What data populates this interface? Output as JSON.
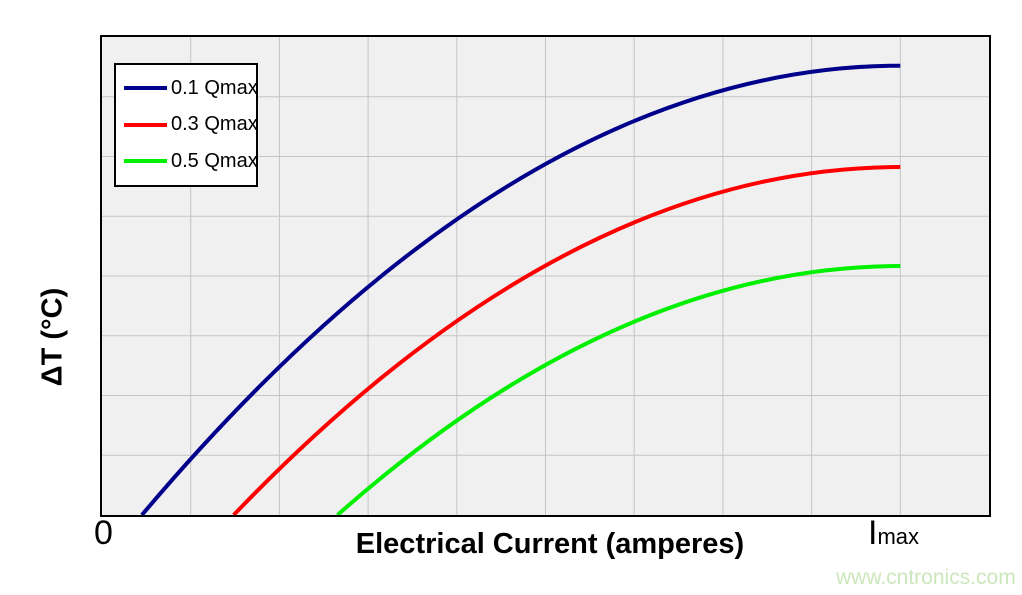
{
  "watermark": {
    "text": "www.cntronics.com",
    "color": "#cbe7bb"
  },
  "chart_data": {
    "type": "line",
    "title": "",
    "xlabel": "Electrical Current (amperes)",
    "ylabel": "ΔT (°C)",
    "x_tick_labels": [
      "0",
      "Imax"
    ],
    "y_tick_labels": [],
    "x_ticks": {
      "zero": "0",
      "imax_base": "I",
      "imax_sub": "max"
    },
    "x_axis_note": "x expressed as fraction of Imax; axis extends to about 1.11 x Imax",
    "y_axis_note": "Delta-T axis has no numeric labels; y expressed as fraction of plot full scale",
    "xlim": [
      0,
      1.111
    ],
    "ylim": [
      0,
      1
    ],
    "imax_position_fraction_of_axis": 0.9,
    "grid": {
      "on": true,
      "x_divisions": 10,
      "y_divisions": 8,
      "color": "#c4c4c4"
    },
    "plot_bg": "#f0f0f0",
    "border_color": "#000000",
    "legend": {
      "position": "top-left",
      "entries": [
        "0.1 Qmax",
        "0.3 Qmax",
        "0.5 Qmax"
      ]
    },
    "series": [
      {
        "name": "0.1 Qmax",
        "color": "#00008b",
        "shape": "parabola with vertex (zero slope) at x=1 (Imax)",
        "x_intercept": 0.05,
        "peak": 0.94,
        "points": [
          [
            0.05,
            0
          ],
          [
            0.1,
            0.096
          ],
          [
            0.2,
            0.273
          ],
          [
            0.3,
            0.429
          ],
          [
            0.4,
            0.564
          ],
          [
            0.5,
            0.679
          ],
          [
            0.6,
            0.773
          ],
          [
            0.7,
            0.845
          ],
          [
            0.8,
            0.897
          ],
          [
            0.9,
            0.929
          ],
          [
            1.0,
            0.94
          ]
        ]
      },
      {
        "name": "0.3 Qmax",
        "color": "#ff0000",
        "shape": "parabola with vertex (zero slope) at x=1 (Imax)",
        "x_intercept": 0.165,
        "peak": 0.728,
        "points": [
          [
            0.165,
            0
          ],
          [
            0.2,
            0.061
          ],
          [
            0.3,
            0.218
          ],
          [
            0.4,
            0.353
          ],
          [
            0.5,
            0.468
          ],
          [
            0.6,
            0.561
          ],
          [
            0.7,
            0.634
          ],
          [
            0.8,
            0.686
          ],
          [
            0.9,
            0.718
          ],
          [
            1.0,
            0.728
          ]
        ]
      },
      {
        "name": "0.5 Qmax",
        "color": "#00f000",
        "shape": "parabola with vertex (zero slope) at x=1 (Imax)",
        "x_intercept": 0.295,
        "peak": 0.521,
        "points": [
          [
            0.295,
            0
          ],
          [
            0.3,
            0.006
          ],
          [
            0.4,
            0.143
          ],
          [
            0.5,
            0.258
          ],
          [
            0.6,
            0.353
          ],
          [
            0.7,
            0.426
          ],
          [
            0.8,
            0.479
          ],
          [
            0.9,
            0.511
          ],
          [
            1.0,
            0.521
          ]
        ]
      }
    ]
  }
}
